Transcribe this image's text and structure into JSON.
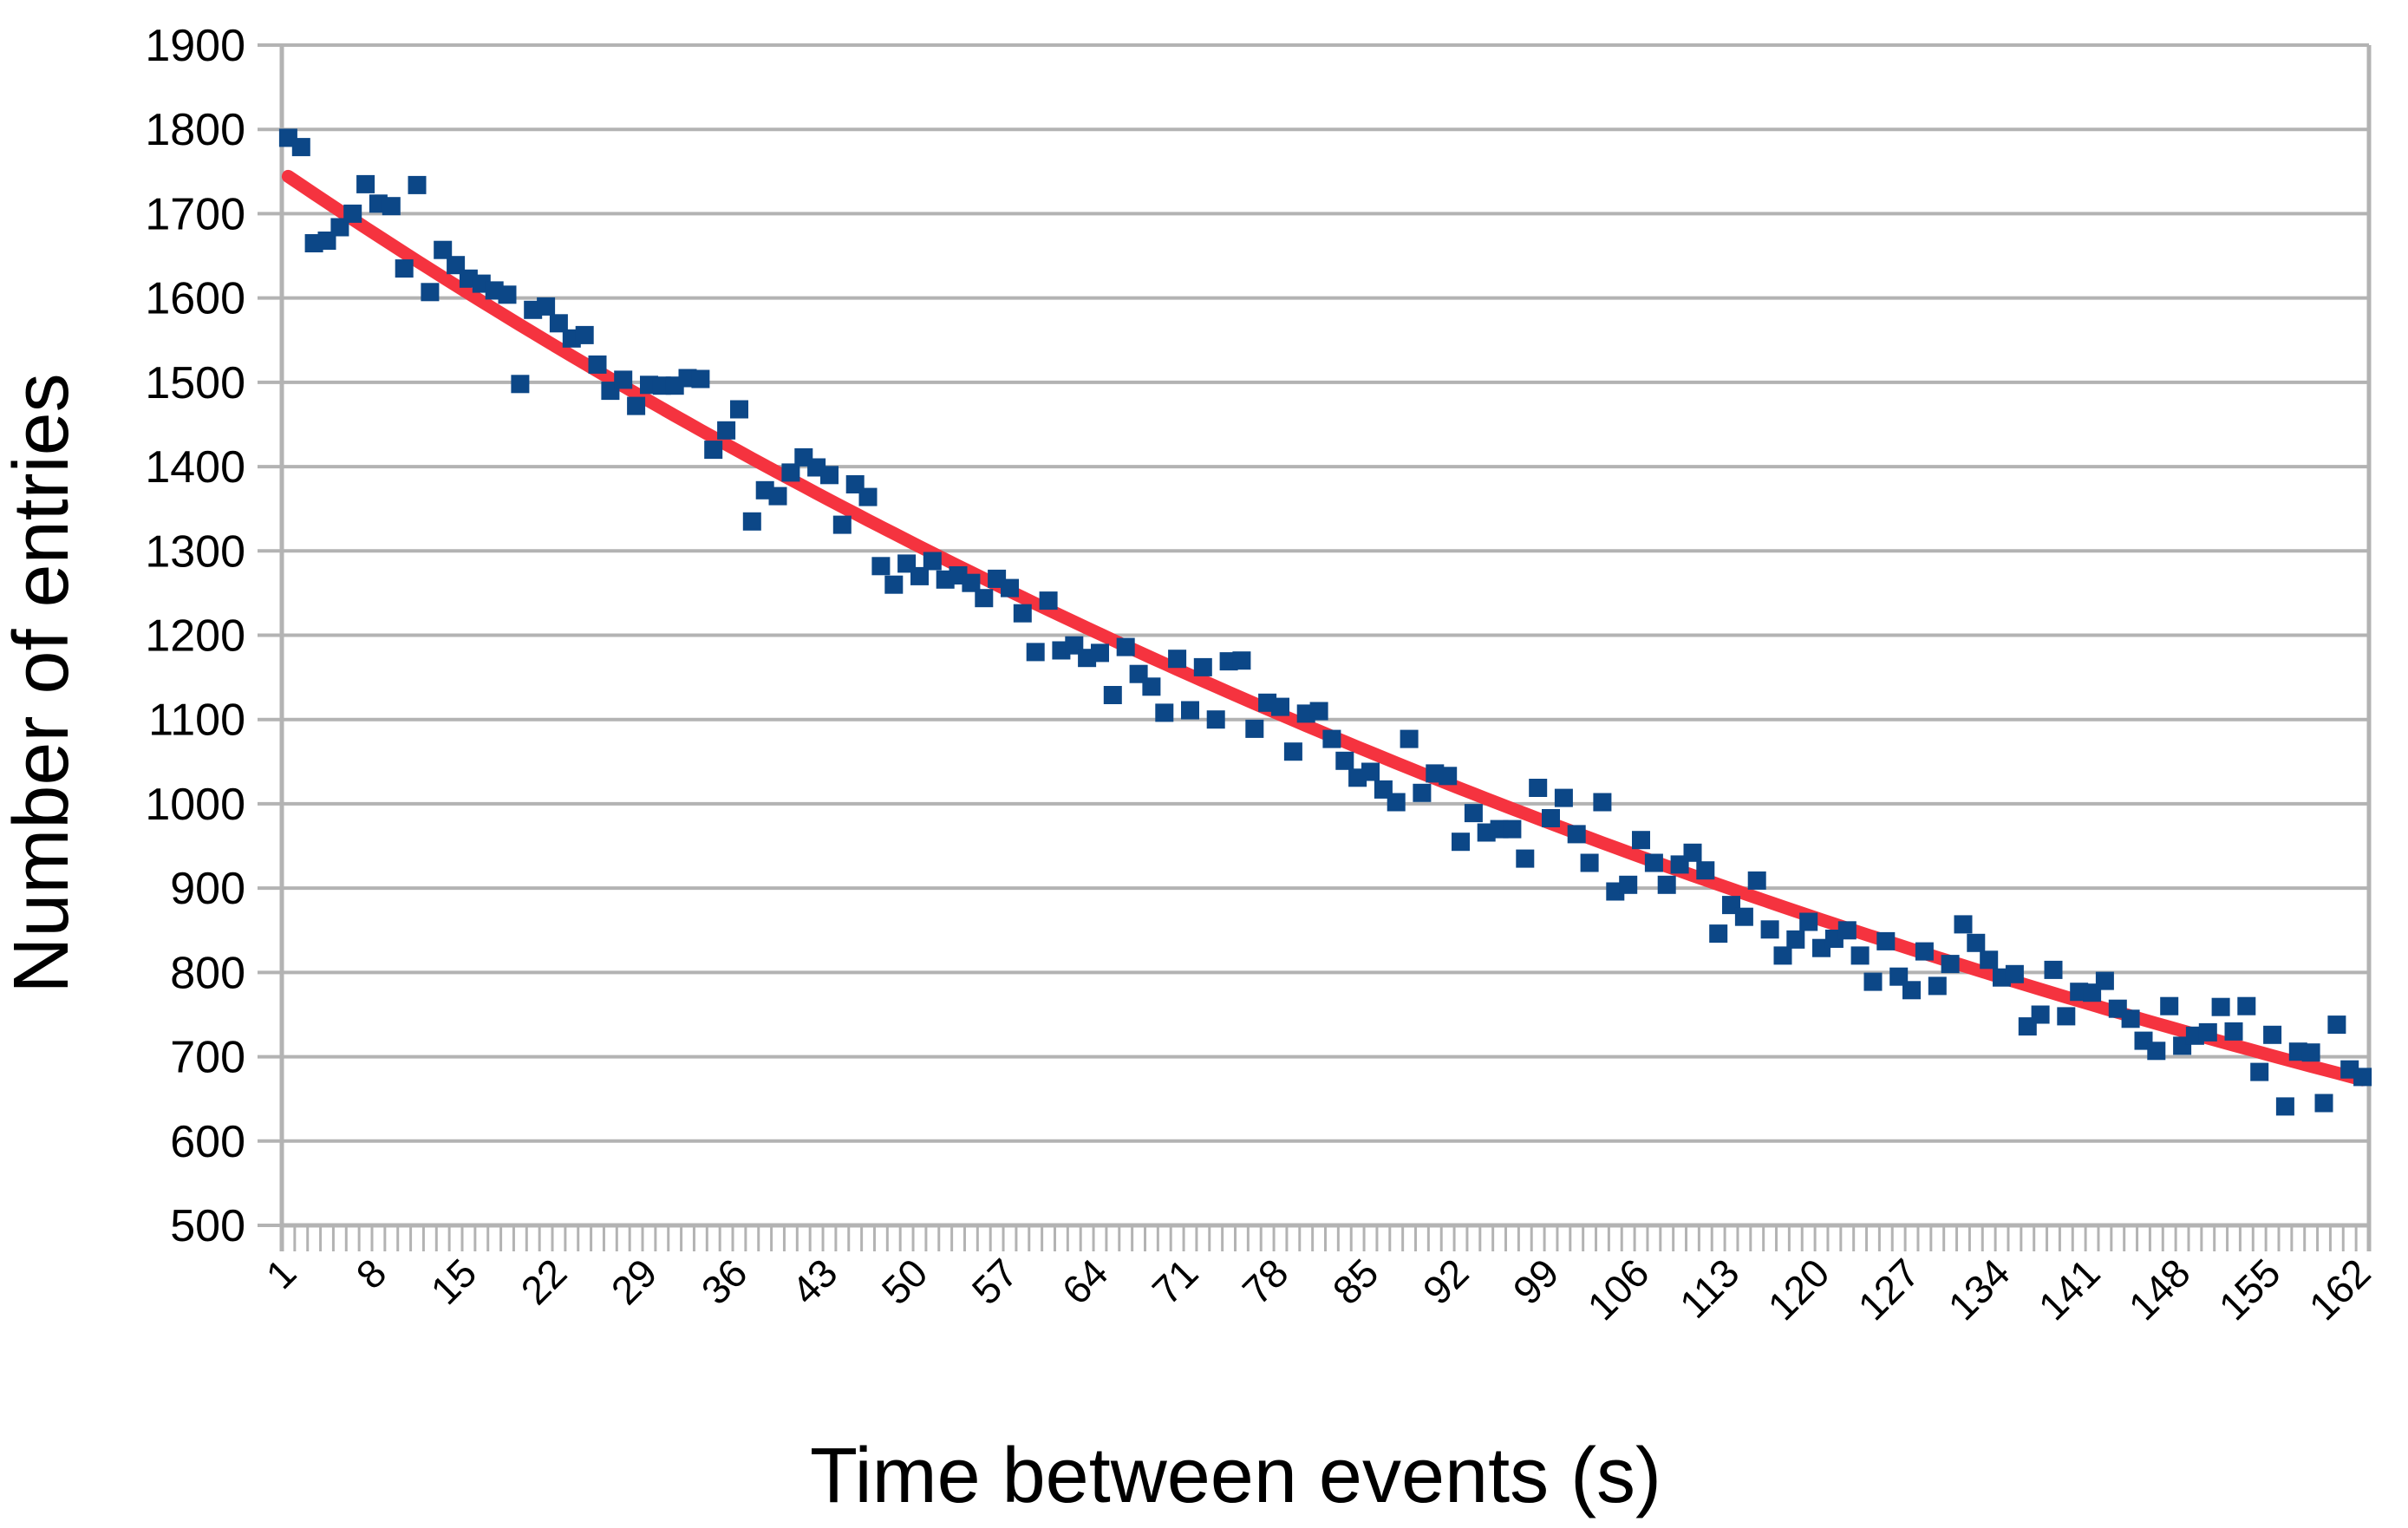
{
  "chart_data": {
    "type": "scatter",
    "title": "",
    "xlabel": "Time between events (s)",
    "ylabel": "Number of entries",
    "xlim": [
      0,
      162
    ],
    "ylim": [
      500,
      1900
    ],
    "y_ticks": [
      500,
      600,
      700,
      800,
      900,
      1000,
      1100,
      1200,
      1300,
      1400,
      1500,
      1600,
      1700,
      1800,
      1900
    ],
    "x_tick_labels": [
      "1",
      "8",
      "15",
      "22",
      "29",
      "36",
      "43",
      "50",
      "57",
      "64",
      "71",
      "78",
      "85",
      "92",
      "99",
      "106",
      "113",
      "120",
      "127",
      "134",
      "141",
      "148",
      "155",
      "162"
    ],
    "grid": {
      "horizontal": true,
      "vertical": false,
      "color": "#b3b3b3"
    },
    "legend": "none",
    "x_start": 1,
    "x_step": 1,
    "series": [
      {
        "name": "Number of entries",
        "type": "scatter",
        "marker": "square",
        "marker_color": "#0c4787",
        "marker_size": 21,
        "values": [
          1790,
          1779,
          1665,
          1668,
          1684,
          1700,
          1735,
          1712,
          1709,
          1635,
          1734,
          1607,
          1657,
          1639,
          1623,
          1617,
          1609,
          1604,
          1498,
          1586,
          1590,
          1570,
          1552,
          1556,
          1521,
          1490,
          1503,
          1472,
          1497,
          1496,
          1496,
          1505,
          1504,
          1420,
          1443,
          1468,
          1335,
          1372,
          1365,
          1393,
          1411,
          1399,
          1390,
          1331,
          1379,
          1364,
          1282,
          1260,
          1285,
          1270,
          1288,
          1266,
          1271,
          1262,
          1244,
          1267,
          1256,
          1226,
          1180,
          1241,
          1182,
          1188,
          1173,
          1179,
          1129,
          1186,
          1154,
          1139,
          1108,
          1172,
          1111,
          1162,
          1100,
          1169,
          1170,
          1089,
          1120,
          1115,
          1062,
          1107,
          1110,
          1077,
          1051,
          1031,
          1038,
          1017,
          1002,
          1077,
          1013,
          1036,
          1033,
          955,
          989,
          966,
          970,
          970,
          935,
          1019,
          983,
          1007,
          964,
          930,
          1002,
          896,
          904,
          957,
          930,
          904,
          928,
          942,
          921,
          846,
          880,
          866,
          909,
          851,
          820,
          839,
          860,
          829,
          840,
          850,
          820,
          789,
          837,
          795,
          779,
          825,
          784,
          810,
          857,
          835,
          815,
          794,
          798,
          736,
          750,
          803,
          748,
          777,
          776,
          790,
          757,
          745,
          719,
          707,
          760,
          713,
          725,
          729,
          759,
          730,
          760,
          682,
          726,
          641,
          706,
          705,
          645,
          738,
          685,
          676
        ]
      },
      {
        "name": "Exponential fit",
        "type": "line",
        "line_color": "#f5333f",
        "line_width": 15,
        "trend": {
          "form": "exponential",
          "a": 1754.6,
          "b": -0.005918,
          "start_value": 1745,
          "end_value": 675
        }
      }
    ]
  },
  "colors": {
    "background": "#ffffff",
    "axis_and_grid": "#b3b3b3",
    "text": "#000000",
    "point": "#0c4787",
    "trend_line": "#f5333f"
  }
}
